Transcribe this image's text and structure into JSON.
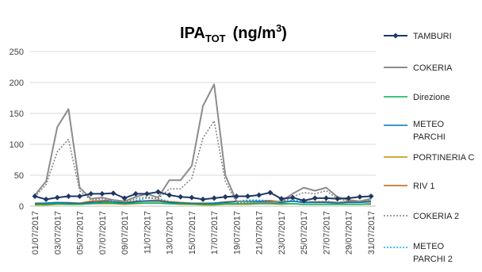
{
  "chart_data": {
    "type": "line",
    "title": {
      "main": "IPA",
      "subscript": "TOT",
      "unit_prefix": "(ng/m",
      "unit_sup": "3",
      "unit_suffix": ")"
    },
    "xlabel": "",
    "ylabel": "",
    "ylim": [
      0,
      250
    ],
    "yticks": [
      0,
      50,
      100,
      150,
      200,
      250
    ],
    "grid": "horizontal",
    "legend_position": "right",
    "x": [
      "01/07/2017",
      "02/07/2017",
      "03/07/2017",
      "04/07/2017",
      "05/07/2017",
      "06/07/2017",
      "07/07/2017",
      "08/07/2017",
      "09/07/2017",
      "10/07/2017",
      "11/07/2017",
      "12/07/2017",
      "13/07/2017",
      "14/07/2017",
      "15/07/2017",
      "16/07/2017",
      "17/07/2017",
      "18/07/2017",
      "19/07/2017",
      "20/07/2017",
      "21/07/2017",
      "22/07/2017",
      "23/07/2017",
      "24/07/2017",
      "25/07/2017",
      "26/07/2017",
      "27/07/2017",
      "28/07/2017",
      "29/07/2017",
      "30/07/2017",
      "31/07/2017"
    ],
    "x_tick_labels": [
      "01/07/2017",
      "03/07/2017",
      "05/07/2017",
      "07/07/2017",
      "09/07/2017",
      "11/07/2017",
      "13/07/2017",
      "15/07/2017",
      "17/07/2017",
      "19/07/2017",
      "21/07/2017",
      "23/07/2017",
      "25/07/2017",
      "27/07/2017",
      "29/07/2017",
      "31/07/2017"
    ],
    "series": [
      {
        "name": "TAMBURI",
        "color": "#1f3864",
        "dash": "solid",
        "marker": "diamond",
        "width": 2,
        "values": [
          16,
          11,
          14,
          16,
          16,
          20,
          20,
          21,
          13,
          20,
          20,
          23,
          18,
          15,
          14,
          11,
          13,
          15,
          16,
          16,
          18,
          22,
          12,
          14,
          9,
          13,
          13,
          12,
          13,
          15,
          16
        ]
      },
      {
        "name": "COKERIA",
        "color": "#8c8c8c",
        "dash": "solid",
        "marker": "none",
        "width": 2,
        "values": [
          18,
          40,
          128,
          157,
          30,
          12,
          14,
          10,
          8,
          15,
          20,
          14,
          42,
          42,
          65,
          162,
          197,
          50,
          8,
          7,
          6,
          6,
          8,
          20,
          30,
          25,
          30,
          15,
          10,
          8,
          12
        ]
      },
      {
        "name": "Direzione",
        "color": "#00b050",
        "dash": "solid",
        "marker": "none",
        "width": 1.5,
        "values": [
          3,
          3,
          4,
          3,
          3,
          4,
          5,
          5,
          4,
          5,
          5,
          5,
          4,
          4,
          3,
          3,
          3,
          4,
          4,
          4,
          4,
          4,
          4,
          4,
          3,
          3,
          3,
          3,
          3,
          3,
          4
        ]
      },
      {
        "name": "METEO PARCHI",
        "color": "#0070c0",
        "dash": "solid",
        "marker": "none",
        "width": 1.5,
        "values": [
          4,
          5,
          6,
          5,
          4,
          6,
          7,
          7,
          5,
          7,
          8,
          8,
          6,
          5,
          4,
          4,
          5,
          6,
          7,
          8,
          8,
          7,
          6,
          8,
          6,
          6,
          6,
          5,
          6,
          6,
          7
        ]
      },
      {
        "name": "PORTINERIA C",
        "color": "#bf9000",
        "dash": "solid",
        "marker": "none",
        "width": 1.5,
        "values": [
          2,
          2,
          3,
          3,
          3,
          4,
          4,
          4,
          3,
          4,
          5,
          5,
          4,
          3,
          3,
          2,
          2,
          3,
          3,
          3,
          4,
          4,
          3,
          4,
          3,
          3,
          3,
          3,
          3,
          3,
          3
        ]
      },
      {
        "name": "RIV 1",
        "color": "#c55a11",
        "dash": "solid",
        "marker": "none",
        "width": 1.5,
        "values": [
          5,
          5,
          6,
          6,
          5,
          8,
          9,
          10,
          6,
          8,
          9,
          10,
          7,
          6,
          5,
          5,
          5,
          7,
          8,
          8,
          8,
          9,
          7,
          8,
          6,
          7,
          7,
          6,
          7,
          7,
          8
        ]
      },
      {
        "name": "COKERIA 2",
        "color": "#7f7f7f",
        "dash": "dotted",
        "marker": "none",
        "width": 1.5,
        "values": [
          15,
          35,
          88,
          108,
          25,
          10,
          12,
          10,
          7,
          12,
          15,
          12,
          28,
          28,
          45,
          110,
          138,
          40,
          6,
          6,
          5,
          5,
          6,
          15,
          22,
          20,
          25,
          12,
          8,
          7,
          10
        ]
      },
      {
        "name": "METEO PARCHI 2",
        "color": "#00b0f0",
        "dash": "dotted",
        "marker": "none",
        "width": 1.5,
        "values": [
          4,
          5,
          6,
          5,
          4,
          8,
          9,
          8,
          6,
          9,
          13,
          12,
          8,
          6,
          5,
          4,
          5,
          7,
          8,
          10,
          10,
          9,
          7,
          10,
          8,
          7,
          8,
          6,
          8,
          8,
          9
        ]
      }
    ]
  }
}
